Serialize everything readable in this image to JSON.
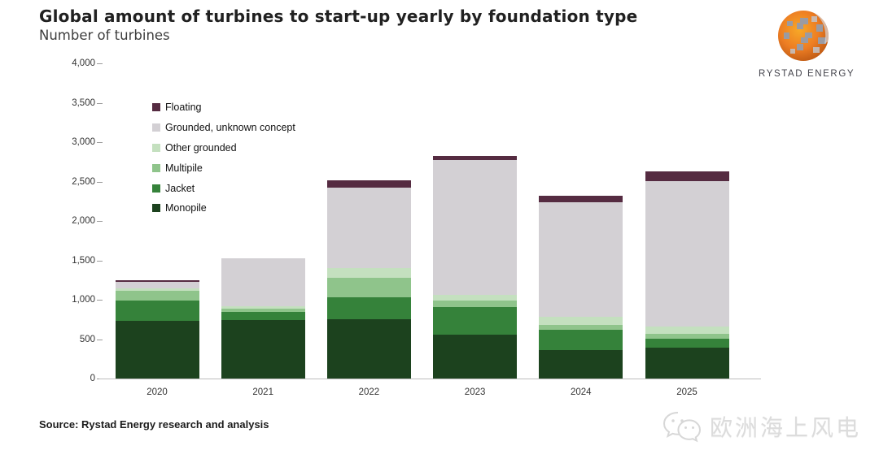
{
  "header": {
    "title": "Global amount of turbines to start-up yearly by foundation type",
    "subtitle": "Number of turbines"
  },
  "logo": {
    "brand": "RYSTAD ENERGY",
    "globe_orange": "#ed7d23",
    "globe_orange_dark": "#c65e17",
    "globe_gray": "#9b9ba2"
  },
  "footer": {
    "source": "Source: Rystad Energy research and analysis",
    "watermark_text": "欧洲海上风电",
    "watermark_icon": "wechat-icon"
  },
  "chart_data": {
    "type": "bar",
    "stacked": true,
    "title": "Global amount of turbines to start-up yearly by foundation type",
    "ylabel": "Number of turbines",
    "xlabel": "",
    "grid": false,
    "legend_position": "top-left-inside",
    "ylim": [
      0,
      4000
    ],
    "ytick_step": 500,
    "yticks": [
      "4,000",
      "3,500",
      "3,000",
      "2,500",
      "2,000",
      "1,500",
      "1,000",
      "500",
      "0"
    ],
    "categories": [
      "2020",
      "2021",
      "2022",
      "2023",
      "2024",
      "2025"
    ],
    "series": [
      {
        "name": "Monopile",
        "color": "#1c421e",
        "values": [
          730,
          740,
          755,
          560,
          365,
          390
        ]
      },
      {
        "name": "Jacket",
        "color": "#35823a",
        "values": [
          260,
          110,
          280,
          350,
          250,
          120
        ]
      },
      {
        "name": "Multipile",
        "color": "#8fc48b",
        "values": [
          120,
          40,
          245,
          75,
          65,
          55
        ]
      },
      {
        "name": "Other grounded",
        "color": "#c4e0bf",
        "values": [
          35,
          25,
          125,
          75,
          100,
          100
        ]
      },
      {
        "name": "Grounded, unknown concept",
        "color": "#d3d0d4",
        "values": [
          80,
          610,
          1020,
          1715,
          1460,
          1840
        ]
      },
      {
        "name": "Floating",
        "color": "#552b41",
        "values": [
          20,
          0,
          90,
          45,
          80,
          125
        ]
      }
    ],
    "legend_order": [
      "Floating",
      "Grounded, unknown concept",
      "Other grounded",
      "Multipile",
      "Jacket",
      "Monopile"
    ],
    "totals": [
      1245,
      1525,
      2515,
      2820,
      2320,
      2630
    ]
  }
}
